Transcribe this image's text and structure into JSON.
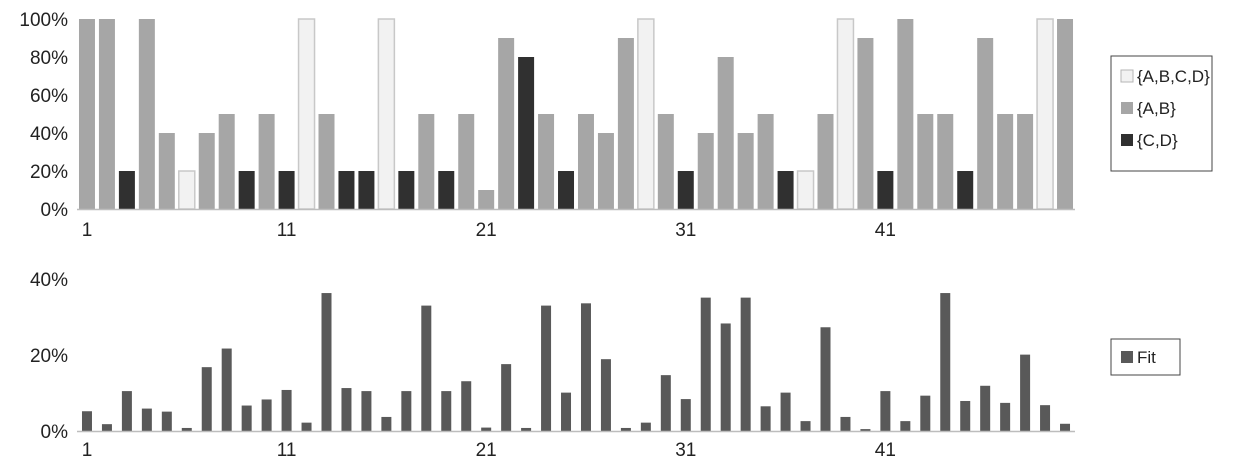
{
  "chart_data": [
    {
      "type": "bar",
      "stacked": false,
      "x": [
        1,
        2,
        3,
        4,
        5,
        6,
        7,
        8,
        9,
        10,
        11,
        12,
        13,
        14,
        15,
        16,
        17,
        18,
        19,
        20,
        21,
        22,
        23,
        24,
        25,
        26,
        27,
        28,
        29,
        30,
        31,
        32,
        33,
        34,
        35,
        36,
        37,
        38,
        39,
        40,
        41,
        42,
        43,
        44,
        45,
        46,
        47,
        48,
        49,
        50
      ],
      "x_tick_labels": [
        "1",
        "11",
        "21",
        "31",
        "41"
      ],
      "y_tick_labels": [
        "0%",
        "20%",
        "40%",
        "60%",
        "80%",
        "100%"
      ],
      "ylim": [
        0,
        100
      ],
      "y_unit": "%",
      "legend_position": "right",
      "series": [
        {
          "name": "{A,B,C,D}",
          "color": "#f2f2f2",
          "values": [
            0,
            0,
            0,
            0,
            0,
            20,
            0,
            0,
            0,
            0,
            0,
            100,
            0,
            0,
            0,
            100,
            0,
            0,
            0,
            0,
            0,
            0,
            0,
            0,
            0,
            0,
            0,
            0,
            100,
            0,
            0,
            0,
            0,
            0,
            0,
            0,
            20,
            0,
            100,
            0,
            0,
            0,
            0,
            0,
            0,
            0,
            0,
            0,
            100,
            0
          ]
        },
        {
          "name": "{A,B}",
          "color": "#a6a6a6",
          "values": [
            100,
            100,
            0,
            100,
            40,
            0,
            40,
            50,
            0,
            50,
            0,
            0,
            50,
            0,
            0,
            0,
            0,
            50,
            0,
            50,
            10,
            90,
            0,
            50,
            0,
            50,
            40,
            90,
            0,
            50,
            0,
            40,
            80,
            40,
            50,
            0,
            0,
            50,
            0,
            90,
            0,
            100,
            50,
            50,
            0,
            90,
            50,
            50,
            0,
            100
          ]
        },
        {
          "name": "{C,D}",
          "color": "#303030",
          "values": [
            0,
            0,
            20,
            0,
            0,
            0,
            0,
            0,
            20,
            0,
            20,
            0,
            0,
            20,
            20,
            0,
            20,
            0,
            20,
            0,
            0,
            0,
            80,
            0,
            20,
            0,
            0,
            0,
            0,
            0,
            20,
            0,
            0,
            0,
            0,
            20,
            0,
            0,
            0,
            0,
            20,
            0,
            0,
            0,
            20,
            0,
            0,
            0,
            0,
            0
          ]
        }
      ]
    },
    {
      "type": "bar",
      "x": [
        1,
        2,
        3,
        4,
        5,
        6,
        7,
        8,
        9,
        10,
        11,
        12,
        13,
        14,
        15,
        16,
        17,
        18,
        19,
        20,
        21,
        22,
        23,
        24,
        25,
        26,
        27,
        28,
        29,
        30,
        31,
        32,
        33,
        34,
        35,
        36,
        37,
        38,
        39,
        40,
        41,
        42,
        43,
        44,
        45,
        46,
        47,
        48,
        49,
        50
      ],
      "x_tick_labels": [
        "1",
        "11",
        "21",
        "31",
        "41"
      ],
      "y_tick_labels": [
        "0%",
        "20%",
        "40%"
      ],
      "ylim": [
        0,
        40
      ],
      "y_unit": "%",
      "legend_position": "right",
      "series": [
        {
          "name": "Fit",
          "color": "#595959",
          "values": [
            5.2,
            1.8,
            10.5,
            5.9,
            5.1,
            0.8,
            16.8,
            21.7,
            6.7,
            8.3,
            10.8,
            2.2,
            36.3,
            11.3,
            10.5,
            3.7,
            10.5,
            33.0,
            10.5,
            13.1,
            0.9,
            17.6,
            0.8,
            33.0,
            10.1,
            33.6,
            18.9,
            0.8,
            2.2,
            14.7,
            8.4,
            35.1,
            28.3,
            35.1,
            6.5,
            10.1,
            2.6,
            27.3,
            3.7,
            0.5,
            10.5,
            2.6,
            9.3,
            36.3,
            7.9,
            11.9,
            7.4,
            20.1,
            6.8,
            1.9
          ]
        }
      ]
    }
  ]
}
